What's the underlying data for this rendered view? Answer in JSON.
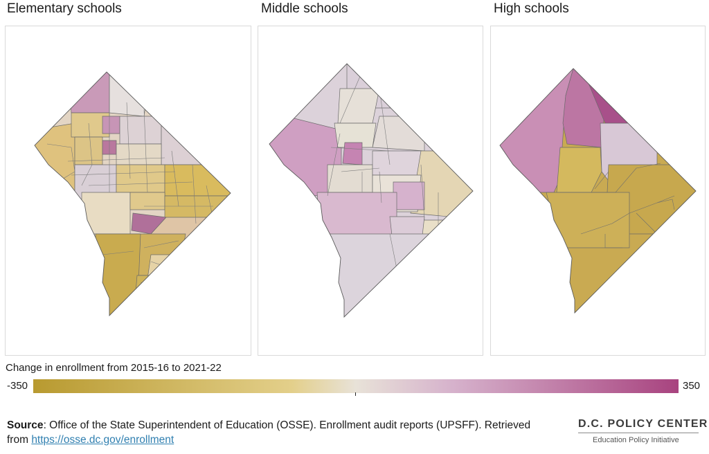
{
  "panels": [
    {
      "title": "Elementary schools"
    },
    {
      "title": "Middle schools"
    },
    {
      "title": "High schools"
    }
  ],
  "legend": {
    "title": "Change in enrollment from 2015-16 to 2021-22",
    "min_label": "-350",
    "max_label": "350",
    "min": -350,
    "max": 350,
    "colors": {
      "low": "#b89a30",
      "mid": "#e8e2d8",
      "high": "#a8437f"
    }
  },
  "source": {
    "label": "Source",
    "text": ": Office of the State Superintendent of Education (OSSE). Enrollment audit reports (UPSFF). Retrieved from ",
    "link_text": "https://osse.dc.gov/enrollment"
  },
  "logo": {
    "name": "D.C. POLICY CENTER",
    "subtitle": "Education Policy Initiative"
  },
  "colors": {
    "border": "#d9d9d9",
    "link": "#2f7fb0",
    "boundary": "#5a5a5a"
  }
}
